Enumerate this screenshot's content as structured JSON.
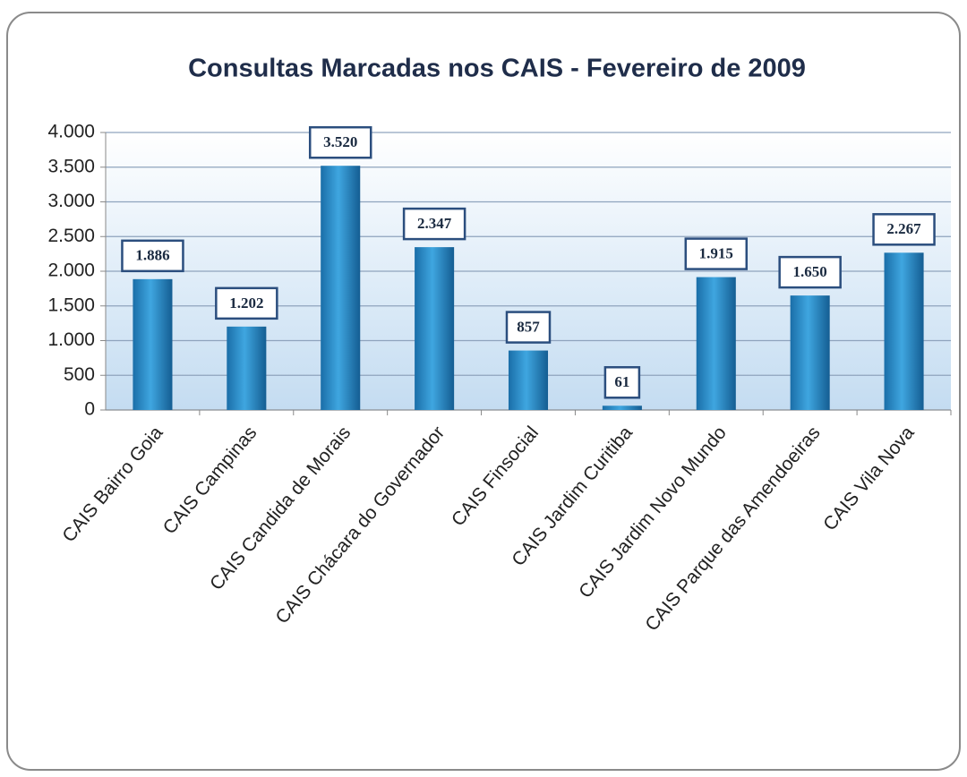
{
  "chart_data": {
    "type": "bar",
    "title": "Consultas Marcadas nos CAIS - Fevereiro de 2009",
    "categories": [
      "CAIS Bairro Goia",
      "CAIS Campinas",
      "CAIS Candida de Morais",
      "CAIS Chácara do Governador",
      "CAIS Finsocial",
      "CAIS Jardim Curitiba",
      "CAIS Jardim Novo Mundo",
      "CAIS Parque das Amendoeiras",
      "CAIS Vila Nova"
    ],
    "values": [
      1886,
      1202,
      3520,
      2347,
      857,
      61,
      1915,
      1650,
      2267
    ],
    "value_labels": [
      "1.886",
      "1.202",
      "3.520",
      "2.347",
      "857",
      "61",
      "1.915",
      "1.650",
      "2.267"
    ],
    "color": "#2a8ccc",
    "ylim": [
      0,
      4000
    ],
    "yticks": [
      0,
      500,
      {
        "value": 1000,
        "label": "1.000"
      },
      {
        "value": 1500,
        "label": "1.500"
      },
      {
        "value": 2000,
        "label": "2.000"
      },
      {
        "value": 2500,
        "label": "2.500"
      },
      {
        "value": 3000,
        "label": "3.000"
      },
      {
        "value": 3500,
        "label": "3.500"
      },
      {
        "value": 4000,
        "label": "4.000"
      }
    ],
    "grid": true
  }
}
